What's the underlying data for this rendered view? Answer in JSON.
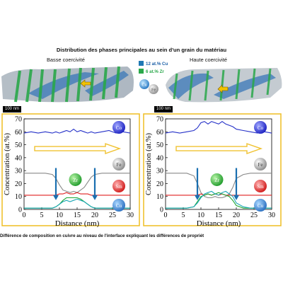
{
  "figure": {
    "title": "Distribution des phases principales au sein d'un grain du matériau",
    "left_caption": "Basse coercivité",
    "right_caption": "Haute coercivité",
    "legend": [
      {
        "label": "12 at.% Cu",
        "color": "#1f78b4"
      },
      {
        "label": "6  at.% Zr",
        "color": "#2aa84a"
      }
    ],
    "cu_ball_label": "Cu",
    "fe_ball_label": "Fe",
    "scalebar_left": "100 nm",
    "scalebar_right": "100 nm",
    "bottom_caption": "Différence de composition en cuivre au niveau de l'interface expliquant les différences de propriét"
  },
  "chart_data": [
    {
      "type": "line",
      "panel": "left",
      "xlabel": "Distance (nm)",
      "ylabel": "Concentration (at.%)",
      "xlim": [
        0,
        30
      ],
      "ylim": [
        0,
        70
      ],
      "xticks": [
        "0",
        "5",
        "10",
        "15",
        "20",
        "25",
        "30"
      ],
      "yticks": [
        "0",
        "10",
        "20",
        "30",
        "40",
        "50",
        "60",
        "70"
      ],
      "x": [
        0,
        2,
        4,
        6,
        8,
        9,
        10,
        11,
        12,
        13,
        14,
        15,
        16,
        17,
        18,
        19,
        20,
        22,
        24,
        26,
        28,
        30
      ],
      "series": [
        {
          "name": "Co",
          "color": "#2430c8",
          "values": [
            59,
            60,
            59,
            60,
            59,
            60,
            59,
            60,
            61,
            60,
            62,
            60,
            61,
            60,
            59,
            60,
            59,
            60,
            61,
            59,
            60,
            59
          ]
        },
        {
          "name": "Fe",
          "color": "#888888",
          "values": [
            28,
            28,
            28,
            28,
            27,
            24,
            19,
            15,
            14,
            13,
            14,
            13,
            15,
            17,
            21,
            25,
            27,
            28,
            28,
            28,
            28,
            28
          ]
        },
        {
          "name": "Sm",
          "color": "#e02020",
          "values": [
            11,
            11,
            11,
            11,
            11,
            11,
            12,
            12,
            13,
            12,
            12,
            13,
            12,
            12,
            12,
            11,
            11,
            11,
            11,
            11,
            11,
            11
          ]
        },
        {
          "name": "Zr",
          "color": "#1ea832",
          "values": [
            1,
            1,
            1,
            1,
            1,
            2,
            4,
            7,
            9,
            9,
            9,
            9,
            8,
            6,
            4,
            2,
            1,
            1,
            1,
            1,
            1,
            1
          ]
        },
        {
          "name": "Cu",
          "color": "#1aa6b5",
          "values": [
            1,
            1,
            1,
            1,
            1,
            2,
            4,
            6,
            7,
            6,
            7,
            8,
            7,
            6,
            4,
            2,
            1,
            1,
            1,
            1,
            1,
            1
          ]
        }
      ],
      "arrows_x": [
        9,
        20
      ]
    },
    {
      "type": "line",
      "panel": "right",
      "xlabel": "Distance (nm)",
      "ylabel": "Concentration (at.%)",
      "xlim": [
        0,
        30
      ],
      "ylim": [
        0,
        70
      ],
      "xticks": [
        "0",
        "5",
        "10",
        "15",
        "20",
        "25",
        "30"
      ],
      "yticks": [
        "0",
        "10",
        "20",
        "30",
        "40",
        "50",
        "60",
        "70"
      ],
      "x": [
        0,
        2,
        4,
        6,
        8,
        9,
        10,
        11,
        12,
        13,
        14,
        15,
        16,
        17,
        18,
        19,
        20,
        22,
        24,
        26,
        28,
        30
      ],
      "series": [
        {
          "name": "Co",
          "color": "#2430c8",
          "values": [
            59,
            60,
            59,
            60,
            61,
            63,
            67,
            68,
            66,
            68,
            67,
            66,
            68,
            66,
            65,
            64,
            62,
            61,
            60,
            59,
            60,
            59
          ]
        },
        {
          "name": "Fe",
          "color": "#888888",
          "values": [
            28,
            28,
            28,
            28,
            26,
            20,
            13,
            10,
            9,
            9,
            10,
            9,
            9,
            10,
            12,
            17,
            24,
            27,
            28,
            28,
            28,
            28
          ]
        },
        {
          "name": "Sm",
          "color": "#e02020",
          "values": [
            11,
            11,
            11,
            11,
            11,
            11,
            12,
            11,
            12,
            11,
            12,
            11,
            12,
            11,
            11,
            11,
            11,
            11,
            11,
            11,
            11,
            11
          ]
        },
        {
          "name": "Zr",
          "color": "#1ea832",
          "values": [
            1,
            1,
            1,
            1,
            2,
            6,
            10,
            11,
            12,
            11,
            12,
            13,
            12,
            11,
            10,
            7,
            3,
            1,
            1,
            1,
            1,
            1
          ]
        },
        {
          "name": "Cu",
          "color": "#1aa6b5",
          "values": [
            1,
            1,
            1,
            1,
            2,
            5,
            9,
            12,
            13,
            14,
            12,
            11,
            13,
            14,
            12,
            10,
            5,
            2,
            1,
            1,
            1,
            1
          ]
        }
      ],
      "arrows_x": [
        9,
        20
      ]
    }
  ]
}
